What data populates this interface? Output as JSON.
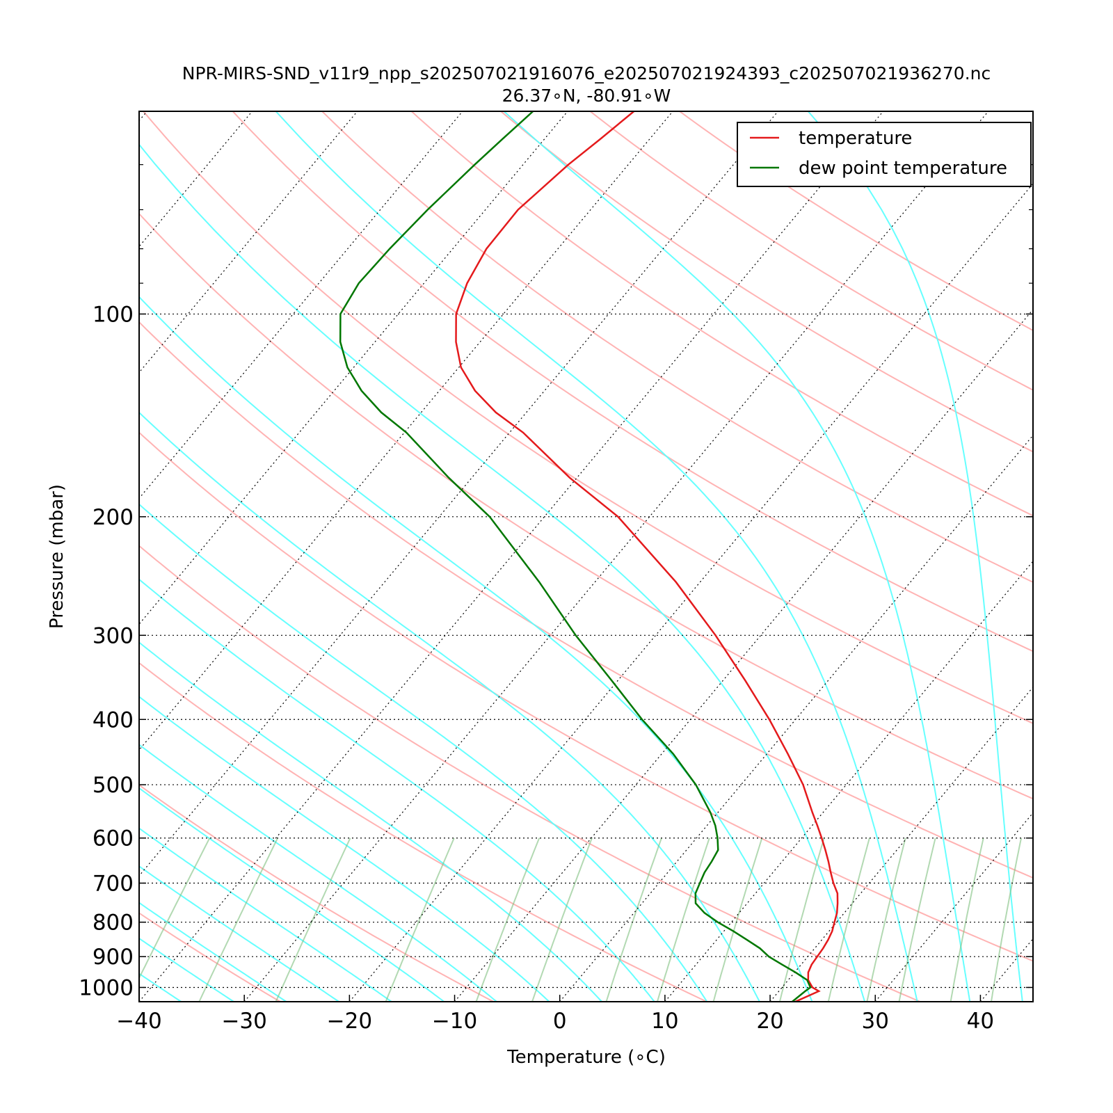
{
  "chart_data": {
    "type": "line",
    "chart_kind": "skew-T log-P sounding diagram",
    "title": "NPR-MIRS-SND_v11r9_npp_s202507021916076_e202507021924393_c202507021936270.nc",
    "subtitle": "26.37$^\\circ$N, -80.91$^\\circ$W",
    "subtitle_display": "26.37∘N, -80.91∘W",
    "xlabel": "Temperature (∘C)",
    "ylabel": "Pressure (mbar)",
    "xlim": [
      -40,
      45
    ],
    "ylim": [
      1050,
      50
    ],
    "y_scale": "log",
    "x_ticks": [
      -40,
      -30,
      -20,
      -10,
      0,
      10,
      20,
      30,
      40
    ],
    "x_tick_labels": [
      "−40",
      "−30",
      "−20",
      "−10",
      "0",
      "10",
      "20",
      "30",
      "40"
    ],
    "y_ticks": [
      100,
      200,
      300,
      400,
      500,
      600,
      700,
      800,
      900,
      1000
    ],
    "y_tick_labels": [
      "100",
      "200",
      "300",
      "400",
      "500",
      "600",
      "700",
      "800",
      "900",
      "1000"
    ],
    "grid": "dotted, horizontal isobars at labeled pressures plus skewed isotherms",
    "legend_position": "top-right",
    "series": [
      {
        "name": "temperature",
        "color": "#e41a1c",
        "points": [
          [
            1050,
            22.4
          ],
          [
            1013,
            23.8
          ],
          [
            1000,
            22.9
          ],
          [
            975,
            21.9
          ],
          [
            950,
            21.3
          ],
          [
            925,
            21.0
          ],
          [
            900,
            20.9
          ],
          [
            875,
            20.8
          ],
          [
            850,
            20.6
          ],
          [
            825,
            20.3
          ],
          [
            800,
            19.8
          ],
          [
            775,
            19.3
          ],
          [
            750,
            18.6
          ],
          [
            725,
            17.8
          ],
          [
            700,
            16.6
          ],
          [
            675,
            15.5
          ],
          [
            650,
            14.4
          ],
          [
            625,
            13.2
          ],
          [
            600,
            11.9
          ],
          [
            575,
            10.5
          ],
          [
            550,
            9.0
          ],
          [
            500,
            5.9
          ],
          [
            450,
            2.0
          ],
          [
            400,
            -2.5
          ],
          [
            350,
            -7.9
          ],
          [
            300,
            -14.3
          ],
          [
            250,
            -22.3
          ],
          [
            200,
            -33.0
          ],
          [
            175,
            -40.7
          ],
          [
            150,
            -48.7
          ],
          [
            140,
            -52.9
          ],
          [
            130,
            -56.6
          ],
          [
            120,
            -59.8
          ],
          [
            110,
            -62.3
          ],
          [
            100,
            -64.5
          ],
          [
            90,
            -65.9
          ],
          [
            80,
            -66.8
          ],
          [
            70,
            -66.9
          ],
          [
            60,
            -65.7
          ],
          [
            55,
            -64.7
          ],
          [
            50,
            -63.7
          ]
        ]
      },
      {
        "name": "dew point temperature",
        "color": "#007700",
        "points": [
          [
            1050,
            22.1
          ],
          [
            1013,
            22.5
          ],
          [
            1000,
            22.7
          ],
          [
            975,
            21.8
          ],
          [
            950,
            20.1
          ],
          [
            925,
            18.2
          ],
          [
            900,
            16.3
          ],
          [
            875,
            14.8
          ],
          [
            850,
            12.9
          ],
          [
            825,
            10.9
          ],
          [
            800,
            8.7
          ],
          [
            775,
            6.7
          ],
          [
            750,
            5.1
          ],
          [
            725,
            4.3
          ],
          [
            700,
            3.9
          ],
          [
            675,
            3.5
          ],
          [
            650,
            3.3
          ],
          [
            625,
            3.0
          ],
          [
            600,
            2.0
          ],
          [
            575,
            0.8
          ],
          [
            550,
            -0.7
          ],
          [
            500,
            -4.3
          ],
          [
            450,
            -8.9
          ],
          [
            400,
            -14.6
          ],
          [
            350,
            -20.6
          ],
          [
            300,
            -27.6
          ],
          [
            250,
            -35.3
          ],
          [
            200,
            -45.2
          ],
          [
            175,
            -52.2
          ],
          [
            150,
            -59.8
          ],
          [
            140,
            -63.8
          ],
          [
            130,
            -67.4
          ],
          [
            120,
            -70.6
          ],
          [
            110,
            -73.3
          ],
          [
            100,
            -75.5
          ],
          [
            90,
            -76.2
          ],
          [
            80,
            -76.0
          ],
          [
            70,
            -75.5
          ],
          [
            60,
            -74.6
          ],
          [
            55,
            -74.0
          ],
          [
            50,
            -73.3
          ]
        ]
      }
    ],
    "background_lines": {
      "dry_adiabats_color": "#ff9999",
      "moist_adiabats_color": "#55ffff",
      "mixing_ratio_color": "#7fbf7f",
      "isotherm_color": "#000000",
      "dry_adiabat_thetas_c": [
        -30,
        -10,
        10,
        30,
        50,
        70,
        90,
        110,
        130,
        150,
        170,
        190,
        210,
        230
      ],
      "moist_adiabat_bases_c": [
        -36,
        -31,
        -26,
        -21,
        -16,
        -11,
        -6,
        -1,
        4,
        9,
        14,
        19,
        24,
        29,
        34,
        39,
        44,
        49,
        54,
        59,
        64,
        69,
        74,
        79
      ],
      "mixing_ratios_g_per_kg": [
        0.1,
        0.2,
        0.4,
        1,
        2,
        3,
        5,
        7,
        10,
        15,
        20,
        25,
        30,
        40,
        50
      ]
    }
  }
}
